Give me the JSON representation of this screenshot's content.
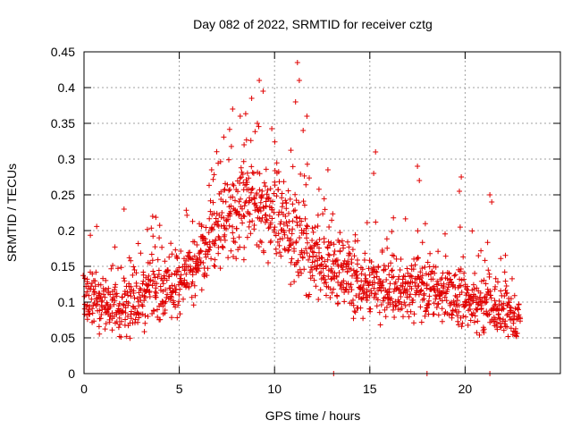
{
  "chart_data": {
    "type": "scatter",
    "title": "Day 082 of 2022, SRMTID for receiver cztg",
    "xlabel": "GPS time / hours",
    "ylabel": "SRMTID / TECUs",
    "xlim": [
      0,
      25
    ],
    "ylim": [
      0,
      0.45
    ],
    "xticks": [
      0,
      5,
      10,
      15,
      20
    ],
    "xtick_labels": [
      "0",
      "5",
      "10",
      "15",
      "20"
    ],
    "yticks": [
      0,
      0.05,
      0.1,
      0.15,
      0.2,
      0.25,
      0.3,
      0.35,
      0.4,
      0.45
    ],
    "ytick_labels": [
      "0",
      "0.05",
      "0.1",
      "0.15",
      "0.2",
      "0.25",
      "0.3",
      "0.35",
      "0.4",
      "0.45"
    ],
    "grid": true,
    "marker": "plus",
    "series_color": "#e00000",
    "series": [
      {
        "name": "SRMTID",
        "envelope": {
          "x": [
            0,
            0.5,
            1.0,
            1.5,
            2.0,
            2.5,
            3.0,
            3.5,
            4.0,
            4.5,
            5.0,
            5.5,
            6.0,
            6.5,
            7.0,
            7.5,
            8.0,
            8.5,
            9.0,
            9.5,
            10.0,
            10.5,
            11.0,
            11.5,
            12.0,
            12.5,
            13.0,
            13.5,
            14.0,
            14.5,
            15.0,
            15.5,
            16.0,
            16.5,
            17.0,
            17.5,
            18.0,
            18.5,
            19.0,
            19.5,
            20.0,
            20.5,
            21.0,
            21.5,
            22.0,
            22.5,
            23.0
          ],
          "low": [
            0.06,
            0.06,
            0.05,
            0.04,
            0.04,
            0.05,
            0.05,
            0.06,
            0.06,
            0.07,
            0.08,
            0.09,
            0.11,
            0.12,
            0.13,
            0.14,
            0.15,
            0.16,
            0.16,
            0.15,
            0.14,
            0.12,
            0.11,
            0.1,
            0.1,
            0.09,
            0.09,
            0.08,
            0.08,
            0.07,
            0.07,
            0.07,
            0.07,
            0.07,
            0.07,
            0.07,
            0.07,
            0.07,
            0.06,
            0.06,
            0.06,
            0.06,
            0.05,
            0.05,
            0.05,
            0.04,
            0.04
          ],
          "high": [
            0.15,
            0.16,
            0.15,
            0.14,
            0.15,
            0.16,
            0.16,
            0.17,
            0.17,
            0.17,
            0.18,
            0.19,
            0.22,
            0.25,
            0.27,
            0.29,
            0.31,
            0.32,
            0.33,
            0.31,
            0.29,
            0.27,
            0.27,
            0.25,
            0.24,
            0.22,
            0.21,
            0.2,
            0.19,
            0.18,
            0.18,
            0.17,
            0.17,
            0.17,
            0.17,
            0.17,
            0.17,
            0.16,
            0.16,
            0.16,
            0.15,
            0.15,
            0.14,
            0.13,
            0.13,
            0.12,
            0.11
          ]
        },
        "x_range": [
          0,
          22.9
        ],
        "n_points": 1600,
        "outliers": [
          {
            "x": 2.1,
            "y": 0.23
          },
          {
            "x": 3.6,
            "y": 0.22
          },
          {
            "x": 6.7,
            "y": 0.285
          },
          {
            "x": 7.8,
            "y": 0.37
          },
          {
            "x": 8.2,
            "y": 0.36
          },
          {
            "x": 8.4,
            "y": 0.32
          },
          {
            "x": 8.8,
            "y": 0.385
          },
          {
            "x": 9.2,
            "y": 0.41
          },
          {
            "x": 9.4,
            "y": 0.395
          },
          {
            "x": 9.1,
            "y": 0.35
          },
          {
            "x": 11.2,
            "y": 0.435
          },
          {
            "x": 11.3,
            "y": 0.41
          },
          {
            "x": 11.1,
            "y": 0.38
          },
          {
            "x": 11.7,
            "y": 0.36
          },
          {
            "x": 11.5,
            "y": 0.34
          },
          {
            "x": 12.8,
            "y": 0.285
          },
          {
            "x": 15.3,
            "y": 0.31
          },
          {
            "x": 15.2,
            "y": 0.28
          },
          {
            "x": 17.5,
            "y": 0.29
          },
          {
            "x": 17.6,
            "y": 0.27
          },
          {
            "x": 19.8,
            "y": 0.275
          },
          {
            "x": 19.7,
            "y": 0.255
          },
          {
            "x": 21.3,
            "y": 0.25
          },
          {
            "x": 21.4,
            "y": 0.24
          },
          {
            "x": 13.1,
            "y": 0.0
          },
          {
            "x": 18.0,
            "y": 0.0
          },
          {
            "x": 21.3,
            "y": 0.0
          }
        ]
      }
    ]
  }
}
